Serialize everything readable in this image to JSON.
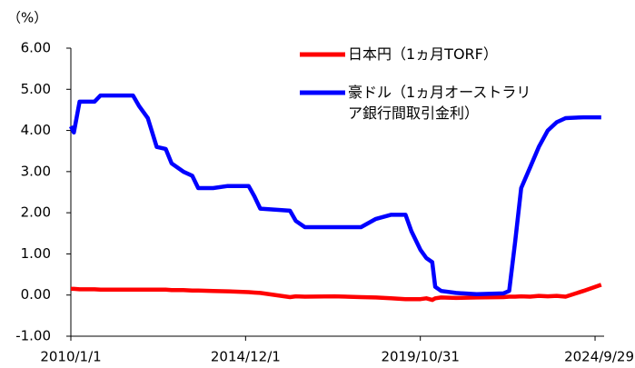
{
  "chart_data": {
    "type": "line",
    "y_label": "（%）",
    "x": [
      "2010/1/1",
      "2010/2/1",
      "2010/4/1",
      "2010/9/1",
      "2010/11/1",
      "2011/6/1",
      "2011/10/1",
      "2011/12/1",
      "2012/3/1",
      "2012/6/1",
      "2012/9/1",
      "2012/11/1",
      "2013/3/1",
      "2013/6/1",
      "2013/8/1",
      "2014/1/1",
      "2014/6/1",
      "2015/1/1",
      "2015/3/1",
      "2015/5/1",
      "2016/3/1",
      "2016/5/1",
      "2016/8/1",
      "2017/6/1",
      "2018/3/1",
      "2018/8/1",
      "2019/1/1",
      "2019/6/1",
      "2019/8/1",
      "2019/11/1",
      "2020/1/1",
      "2020/3/1",
      "2020/4/1",
      "2020/6/1",
      "2020/11/1",
      "2021/6/1",
      "2022/3/1",
      "2022/5/1",
      "2022/7/1",
      "2022/9/1",
      "2022/12/1",
      "2023/3/1",
      "2023/6/1",
      "2023/9/1",
      "2023/12/1",
      "2024/6/1",
      "2024/12/1"
    ],
    "series": [
      {
        "name": "日本円（1ヵ月TORF）",
        "color": "#ff0000",
        "values": [
          0.15,
          0.15,
          0.14,
          0.14,
          0.13,
          0.13,
          0.13,
          0.13,
          0.13,
          0.13,
          0.13,
          0.12,
          0.12,
          0.11,
          0.11,
          0.1,
          0.09,
          0.07,
          0.06,
          0.05,
          -0.05,
          -0.03,
          -0.04,
          -0.03,
          -0.05,
          -0.06,
          -0.08,
          -0.1,
          -0.1,
          -0.1,
          -0.08,
          -0.12,
          -0.08,
          -0.06,
          -0.07,
          -0.06,
          -0.05,
          -0.04,
          -0.04,
          -0.03,
          -0.04,
          -0.02,
          -0.03,
          -0.02,
          -0.04,
          0.1,
          0.25
        ]
      },
      {
        "name": "豪ドル（1ヵ月オーストラリア銀行間取引金利）",
        "color": "#0000ff",
        "values": [
          4.1,
          3.95,
          4.7,
          4.7,
          4.85,
          4.85,
          4.85,
          4.6,
          4.3,
          3.6,
          3.55,
          3.2,
          3.0,
          2.9,
          2.6,
          2.6,
          2.65,
          2.65,
          2.4,
          2.1,
          2.05,
          1.8,
          1.65,
          1.65,
          1.65,
          1.85,
          1.95,
          1.95,
          1.55,
          1.1,
          0.9,
          0.8,
          0.2,
          0.1,
          0.05,
          0.02,
          0.04,
          0.1,
          1.3,
          2.6,
          3.1,
          3.6,
          4.0,
          4.2,
          4.3,
          4.32,
          4.32
        ]
      }
    ],
    "xlim": [
      "2010/1/1",
      "2024/12/31"
    ],
    "xticks": [
      "2010/1/1",
      "2014/12/1",
      "2019/10/31",
      "2024/9/29"
    ],
    "ylim": [
      -1,
      6
    ],
    "yticks": [
      {
        "value": -1,
        "label": "-1.00"
      },
      {
        "value": 0,
        "label": "0.00"
      },
      {
        "value": 1,
        "label": "1.00"
      },
      {
        "value": 2,
        "label": "2.00"
      },
      {
        "value": 3,
        "label": "3.00"
      },
      {
        "value": 4,
        "label": "4.00"
      },
      {
        "value": 5,
        "label": "5.00"
      },
      {
        "value": 6,
        "label": "6.00"
      }
    ],
    "grid": false
  }
}
